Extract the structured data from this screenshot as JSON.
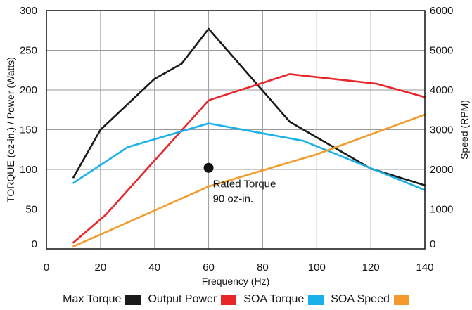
{
  "chart_data": {
    "type": "line",
    "title": "",
    "xlabel": "Frequency (Hz)",
    "ylabel_left": "TORQUE (oz-in.) / Power (Watts)",
    "ylabel_right": "Speed (RPM)",
    "xlim": [
      0,
      140
    ],
    "ylim_left": [
      0,
      300
    ],
    "ylim_right": [
      0,
      6000
    ],
    "x_ticks": [
      "0",
      "20",
      "40",
      "60",
      "80",
      "100",
      "120",
      "140"
    ],
    "y_left_ticks": [
      "0",
      "50",
      "100",
      "150",
      "200",
      "250",
      "300"
    ],
    "y_right_ticks": [
      "0",
      "1000",
      "2000",
      "3000",
      "4000",
      "5000",
      "6000"
    ],
    "grid": true,
    "legend_position": "bottom",
    "series": [
      {
        "name": "Max Torque",
        "color": "#1a1a1a",
        "axis": "left",
        "points": [
          [
            10,
            90
          ],
          [
            20,
            150
          ],
          [
            30,
            182
          ],
          [
            40,
            214
          ],
          [
            50,
            233
          ],
          [
            60,
            277
          ],
          [
            90,
            160
          ],
          [
            120,
            101
          ],
          [
            140,
            80
          ]
        ]
      },
      {
        "name": "Output Power",
        "color": "#e8262a",
        "axis": "left",
        "points": [
          [
            10,
            8
          ],
          [
            22,
            43
          ],
          [
            60,
            187
          ],
          [
            90,
            220
          ],
          [
            122,
            208
          ],
          [
            140,
            191
          ]
        ]
      },
      {
        "name": "SOA Torque",
        "color": "#1ab1ea",
        "axis": "left",
        "points": [
          [
            10,
            83
          ],
          [
            30,
            128
          ],
          [
            60,
            158
          ],
          [
            95,
            136
          ],
          [
            140,
            74
          ]
        ]
      },
      {
        "name": "SOA Speed",
        "color": "#f39a2a",
        "axis": "right",
        "points": [
          [
            10,
            60
          ],
          [
            60,
            1570
          ],
          [
            100,
            2380
          ],
          [
            140,
            3380
          ]
        ]
      }
    ],
    "annotations": [
      {
        "marker_point": [
          60,
          102
        ],
        "text_lines": [
          "Rated Torque",
          "90 oz-in."
        ]
      }
    ]
  }
}
